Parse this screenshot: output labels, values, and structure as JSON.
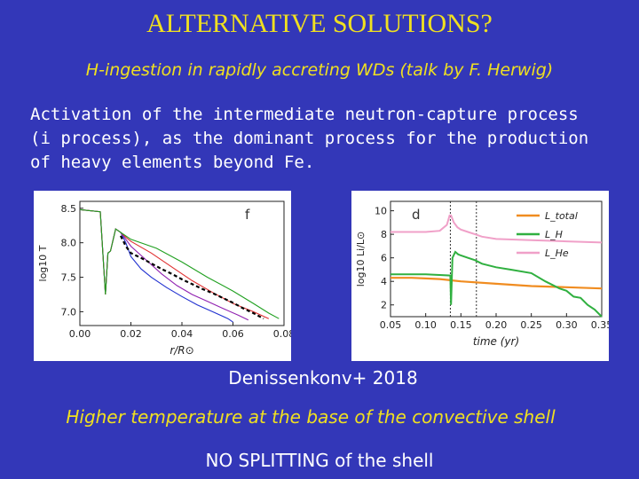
{
  "slide": {
    "title": "ALTERNATIVE SOLUTIONS?",
    "subtitle": "H-ingestion in rapidly accreting WDs (talk by F. Herwig)",
    "body_lines": [
      "Activation of the intermediate neutron-capture process",
      "(i process), as the dominant process for the production",
      "of heavy elements beyond Fe."
    ],
    "credit": "Denissenkonv+ 2018",
    "claim": "Higher temperature at the base of the convective shell",
    "conclusion": "NO SPLITTING of the shell"
  },
  "chart_data": [
    {
      "type": "line",
      "panel_label": "f",
      "xlabel": "r/R⊙",
      "ylabel": "log10 T",
      "xlim": [
        0.0,
        0.08
      ],
      "ylim": [
        6.8,
        8.6
      ],
      "x_ticks": [
        "0.00",
        "0.02",
        "0.04",
        "0.06",
        "0.08"
      ],
      "y_ticks": [
        "7.0",
        "7.5",
        "8.0",
        "8.5"
      ],
      "series_colors": [
        "#2030d0",
        "#9020b0",
        "#e03030",
        "#20a020",
        "#000000"
      ],
      "series": [
        {
          "x": [
            0.0,
            0.008,
            0.01,
            0.011,
            0.012,
            0.014,
            0.016,
            0.018,
            0.02,
            0.024,
            0.028,
            0.034,
            0.04,
            0.046,
            0.052,
            0.058,
            0.06
          ],
          "values": [
            8.48,
            8.45,
            7.25,
            7.85,
            7.88,
            8.2,
            8.15,
            8.0,
            7.8,
            7.62,
            7.5,
            7.35,
            7.22,
            7.1,
            7.0,
            6.9,
            6.85
          ]
        },
        {
          "x": [
            0.0,
            0.008,
            0.01,
            0.011,
            0.012,
            0.014,
            0.016,
            0.018,
            0.02,
            0.026,
            0.032,
            0.038,
            0.044,
            0.05,
            0.056,
            0.062,
            0.066
          ],
          "values": [
            8.48,
            8.45,
            7.25,
            7.85,
            7.88,
            8.2,
            8.15,
            8.05,
            7.95,
            7.75,
            7.55,
            7.38,
            7.25,
            7.15,
            7.05,
            6.95,
            6.88
          ]
        },
        {
          "x": [
            0.0,
            0.008,
            0.01,
            0.011,
            0.012,
            0.014,
            0.016,
            0.018,
            0.02,
            0.028,
            0.036,
            0.044,
            0.052,
            0.06,
            0.068,
            0.074
          ],
          "values": [
            8.48,
            8.45,
            7.25,
            7.85,
            7.88,
            8.2,
            8.15,
            8.08,
            8.02,
            7.85,
            7.65,
            7.45,
            7.28,
            7.12,
            7.0,
            6.9
          ]
        },
        {
          "x": [
            0.0,
            0.008,
            0.01,
            0.011,
            0.012,
            0.014,
            0.016,
            0.018,
            0.02,
            0.03,
            0.04,
            0.05,
            0.06,
            0.068,
            0.074,
            0.078
          ],
          "values": [
            8.48,
            8.45,
            7.25,
            7.85,
            7.88,
            8.2,
            8.15,
            8.1,
            8.05,
            7.92,
            7.72,
            7.5,
            7.3,
            7.12,
            6.98,
            6.9
          ]
        },
        {
          "x": [
            0.016,
            0.018,
            0.02,
            0.024,
            0.028,
            0.032,
            0.036,
            0.04,
            0.044,
            0.048,
            0.052,
            0.056,
            0.06,
            0.064,
            0.068,
            0.072
          ],
          "values": [
            8.1,
            7.95,
            7.85,
            7.78,
            7.7,
            7.62,
            7.55,
            7.47,
            7.4,
            7.33,
            7.27,
            7.2,
            7.13,
            7.05,
            6.98,
            6.9
          ]
        }
      ]
    },
    {
      "type": "line",
      "panel_label": "d",
      "xlabel": "time (yr)",
      "ylabel": "log10 Li/L⊙",
      "xlim": [
        0.05,
        0.35
      ],
      "ylim": [
        1,
        10.8
      ],
      "x_ticks": [
        "0.05",
        "0.10",
        "0.15",
        "0.20",
        "0.25",
        "0.30",
        "0.35"
      ],
      "y_ticks": [
        "2",
        "4",
        "6",
        "8",
        "10"
      ],
      "vlines": [
        0.135,
        0.172
      ],
      "legend": [
        "L_total",
        "L_H",
        "L_He"
      ],
      "series_colors": [
        "#f08c20",
        "#30b040",
        "#f0a0c8"
      ],
      "series": [
        {
          "name": "L_total",
          "x": [
            0.05,
            0.08,
            0.1,
            0.12,
            0.135,
            0.15,
            0.2,
            0.25,
            0.3,
            0.35
          ],
          "values": [
            4.3,
            4.3,
            4.25,
            4.2,
            4.1,
            4.0,
            3.8,
            3.6,
            3.5,
            3.4
          ]
        },
        {
          "name": "L_H",
          "x": [
            0.05,
            0.1,
            0.135,
            0.136,
            0.138,
            0.142,
            0.146,
            0.15,
            0.16,
            0.17,
            0.18,
            0.2,
            0.22,
            0.25,
            0.27,
            0.29,
            0.3,
            0.31,
            0.32,
            0.33,
            0.34,
            0.35
          ],
          "values": [
            4.6,
            4.6,
            4.5,
            2.0,
            6.0,
            6.5,
            6.3,
            6.2,
            6.0,
            5.8,
            5.5,
            5.2,
            5.0,
            4.7,
            4.0,
            3.4,
            3.2,
            2.7,
            2.6,
            2.0,
            1.6,
            1.0
          ]
        },
        {
          "name": "L_He",
          "x": [
            0.05,
            0.1,
            0.12,
            0.13,
            0.134,
            0.136,
            0.14,
            0.145,
            0.15,
            0.16,
            0.17,
            0.18,
            0.2,
            0.25,
            0.3,
            0.35
          ],
          "values": [
            8.2,
            8.2,
            8.3,
            8.8,
            9.6,
            9.6,
            9.0,
            8.6,
            8.4,
            8.2,
            8.0,
            7.8,
            7.6,
            7.5,
            7.4,
            7.3
          ]
        }
      ]
    }
  ]
}
